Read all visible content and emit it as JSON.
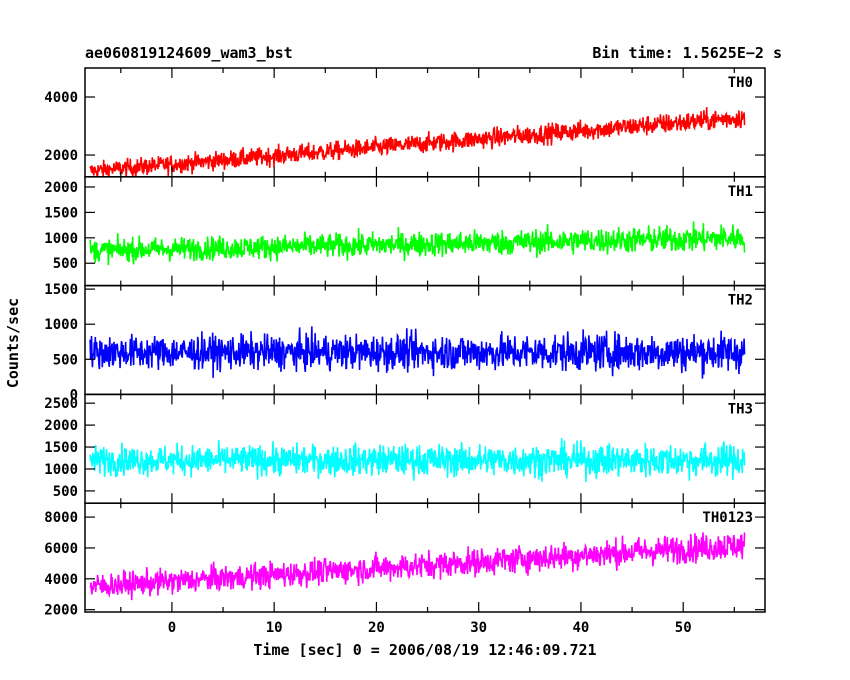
{
  "chart_data": {
    "type": "line",
    "title_left": "ae060819124609_wam3_bst",
    "title_right": "Bin time: 1.5625E−2 s",
    "ylabel": "Counts/sec",
    "xlabel": "Time [sec] 0 = 2006/08/19 12:46:09.721",
    "xlim": [
      -8.5,
      58
    ],
    "x_data_range": [
      -8.0,
      56.0
    ],
    "x_ticks": [
      0,
      10,
      20,
      30,
      40,
      50
    ],
    "panels": [
      {
        "name": "TH0",
        "color": "#ff0000",
        "ylim": [
          1250,
          5000
        ],
        "y_ticks": [
          2000,
          4000
        ],
        "trend_start": 1450,
        "trend_end": 3300,
        "spread": 650
      },
      {
        "name": "TH1",
        "color": "#00ff00",
        "ylim": [
          60,
          2200
        ],
        "y_ticks": [
          500,
          1000,
          1500,
          2000
        ],
        "trend_start": 750,
        "trend_end": 1000,
        "spread": 480
      },
      {
        "name": "TH2",
        "color": "#0000ff",
        "ylim": [
          0,
          1550
        ],
        "y_ticks": [
          0,
          500,
          1000,
          1500
        ],
        "trend_start": 600,
        "trend_end": 600,
        "spread": 500
      },
      {
        "name": "TH3",
        "color": "#00ffff",
        "ylim": [
          220,
          2700
        ],
        "y_ticks": [
          500,
          1000,
          1500,
          2000,
          2500
        ],
        "trend_start": 1200,
        "trend_end": 1200,
        "spread": 700
      },
      {
        "name": "TH0123",
        "color": "#ff00ff",
        "ylim": [
          1850,
          8900
        ],
        "y_ticks": [
          2000,
          4000,
          6000,
          8000
        ],
        "trend_start": 3500,
        "trend_end": 6200,
        "spread": 1700
      }
    ]
  }
}
